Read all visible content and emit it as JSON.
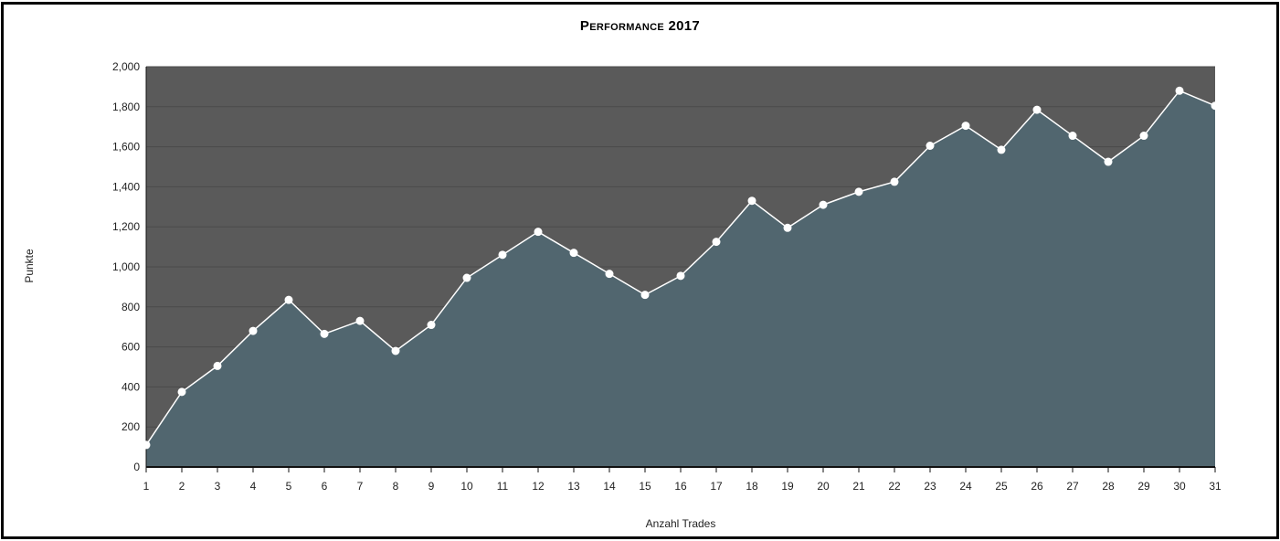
{
  "chart_data": {
    "type": "area",
    "title": "Performance 2017",
    "xlabel": "Anzahl Trades",
    "ylabel": "Punkte",
    "x": [
      1,
      2,
      3,
      4,
      5,
      6,
      7,
      8,
      9,
      10,
      11,
      12,
      13,
      14,
      15,
      16,
      17,
      18,
      19,
      20,
      21,
      22,
      23,
      24,
      25,
      26,
      27,
      28,
      29,
      30,
      31
    ],
    "series": [
      {
        "values": [
          110,
          375,
          505,
          680,
          835,
          665,
          730,
          580,
          710,
          945,
          1060,
          1175,
          1070,
          965,
          860,
          955,
          1125,
          1330,
          1195,
          1310,
          1375,
          1425,
          1605,
          1705,
          1585,
          1785,
          1655,
          1525,
          1655,
          1880,
          1805
        ]
      }
    ],
    "ylim": [
      0,
      2000
    ],
    "yticks": [
      0,
      200,
      400,
      600,
      800,
      1000,
      1200,
      1400,
      1600,
      1800,
      2000
    ],
    "ytick_labels": [
      "0",
      "200",
      "400",
      "600",
      "800",
      "1,000",
      "1,200",
      "1,400",
      "1,600",
      "1,800",
      "2,000"
    ],
    "grid": true,
    "colors": {
      "plot_background": "#5a5a5a",
      "area_fill": "#51666f",
      "line": "#ffffff",
      "marker": "#ffffff",
      "grid": "#4a4a4a"
    }
  }
}
